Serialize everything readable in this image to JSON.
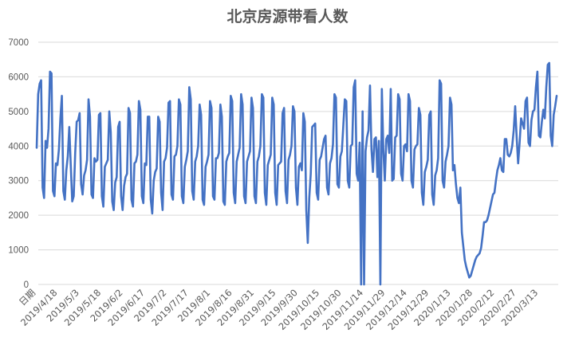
{
  "chart_data": {
    "type": "line",
    "title": "北京房源带看人数",
    "xlabel": "",
    "ylabel": "",
    "ylim": [
      0,
      7000
    ],
    "yticks": [
      0,
      1000,
      2000,
      3000,
      4000,
      5000,
      6000,
      7000
    ],
    "grid": "horizontal",
    "legend": "none",
    "line_color": "#4472C4",
    "xtick_labels": [
      "日期",
      "2019/4/18",
      "2019/5/3",
      "2019/5/18",
      "2019/6/2",
      "2019/6/17",
      "2019/7/2",
      "2019/7/17",
      "2019/8/1",
      "2019/8/16",
      "2019/8/31",
      "2019/9/15",
      "2019/9/30",
      "2019/10/15",
      "2019/10/30",
      "2019/11/14",
      "2019/11/29",
      "2019/12/14",
      "2019/12/29",
      "2020/1/13",
      "2020/1/28",
      "2020/2/12",
      "2020/2/27",
      "2020/3/13"
    ],
    "series": [
      {
        "values": [
          3950,
          5500,
          5800,
          5900,
          2800,
          2500,
          4150,
          3950,
          4500,
          6150,
          6100,
          2700,
          2550,
          3500,
          3450,
          3900,
          4800,
          5450,
          2700,
          2450,
          3300,
          3700,
          4550,
          3450,
          2400,
          2550,
          3800,
          4700,
          4750,
          4950,
          2900,
          2600,
          3150,
          3300,
          3600,
          5350,
          4850,
          2600,
          2500,
          3650,
          3550,
          3600,
          4900,
          4950,
          2550,
          2250,
          3400,
          3500,
          3600,
          5000,
          4400,
          2400,
          2150,
          2950,
          3100,
          4550,
          4700,
          2550,
          2150,
          2850,
          3100,
          3200,
          5100,
          4950,
          2450,
          2250,
          3500,
          3550,
          3750,
          5300,
          5050,
          2550,
          2350,
          3500,
          3450,
          4850,
          4850,
          2450,
          2050,
          3000,
          3250,
          3350,
          4850,
          4700,
          2650,
          2150,
          3550,
          3650,
          3950,
          5250,
          5300,
          2600,
          2450,
          3700,
          3750,
          4000,
          5350,
          5200,
          2550,
          2350,
          3400,
          3600,
          3850,
          5700,
          5350,
          2700,
          2450,
          3550,
          3700,
          4000,
          5200,
          4900,
          2450,
          2300,
          3400,
          3550,
          3750,
          5300,
          5100,
          2550,
          2450,
          3650,
          3650,
          3800,
          5200,
          4850,
          2400,
          2300,
          3550,
          3700,
          3800,
          5450,
          5300,
          2650,
          2350,
          3550,
          3750,
          3950,
          5500,
          5200,
          2550,
          2350,
          3550,
          3700,
          3850,
          5400,
          5100,
          2550,
          2350,
          3550,
          3700,
          4000,
          5500,
          5400,
          2650,
          2300,
          3450,
          3600,
          3750,
          5400,
          5200,
          2650,
          2300,
          3450,
          3500,
          3550,
          4950,
          5100,
          2700,
          2350,
          3600,
          3750,
          4000,
          5150,
          5000,
          2800,
          2300,
          3400,
          3500,
          3300,
          4950,
          4700,
          2150,
          1200,
          2500,
          3200,
          4550,
          4600,
          4650,
          2650,
          2450,
          3600,
          3700,
          3950,
          4200,
          4300,
          2800,
          2600,
          3500,
          3650,
          4050,
          5500,
          5400,
          2900,
          2800,
          3700,
          3850,
          4600,
          5350,
          5300,
          3000,
          2800,
          4000,
          4050,
          5700,
          5900,
          3200,
          3000,
          4100,
          0,
          5000,
          0,
          3850,
          4250,
          4450,
          5750,
          3900,
          3250,
          4200,
          4250,
          3100,
          4150,
          0,
          5650,
          3900,
          3000,
          4200,
          4300,
          3800,
          5650,
          3000,
          3050,
          4250,
          4300,
          5500,
          5350,
          3200,
          3000,
          4000,
          4050,
          3850,
          5500,
          5300,
          3000,
          2800,
          3900,
          4000,
          4050,
          5100,
          4900,
          2650,
          2300,
          3250,
          3400,
          3600,
          4900,
          5000,
          2600,
          2300,
          3150,
          3300,
          3650,
          5900,
          5800,
          3000,
          2800,
          3550,
          3750,
          4000,
          5400,
          5200,
          3300,
          3450,
          2900,
          2500,
          2350,
          2800,
          1500,
          1100,
          700,
          500,
          350,
          200,
          250,
          400,
          550,
          700,
          800,
          850,
          900,
          1050,
          1400,
          1800,
          1800,
          1850,
          2000,
          2200,
          2400,
          2600,
          2650,
          3000,
          3300,
          3450,
          3650,
          3300,
          3250,
          4200,
          4200,
          3750,
          3700,
          3800,
          4000,
          4450,
          5150,
          4250,
          3500,
          4100,
          4800,
          4650,
          4500,
          5300,
          5400,
          4100,
          4000,
          4750,
          5000,
          5050,
          5700,
          6150,
          4300,
          4250,
          4700,
          5050,
          4800,
          5700,
          6350,
          6400,
          4300,
          4000,
          4900,
          5150,
          5450
        ]
      }
    ]
  }
}
